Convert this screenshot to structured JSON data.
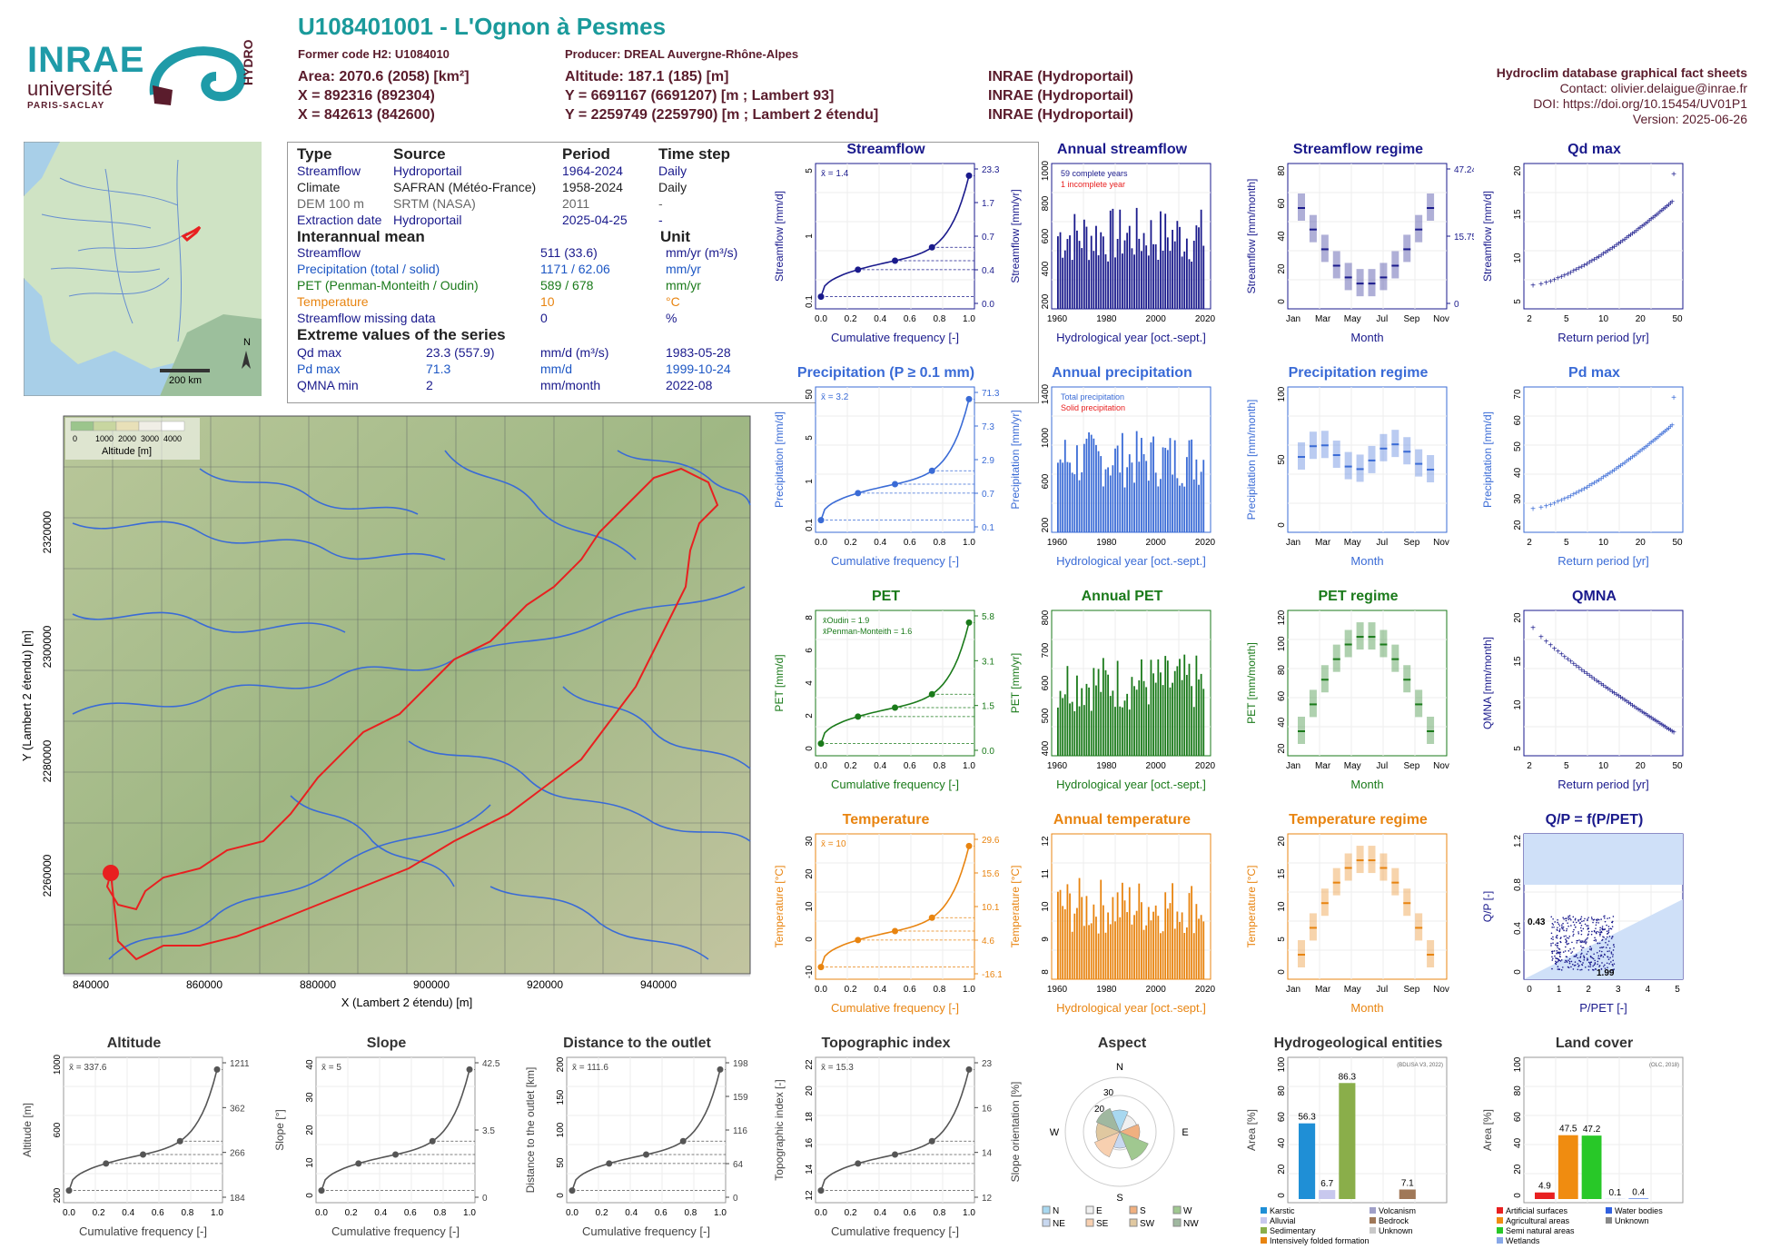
{
  "header": {
    "title": "U108401001 - L'Ognon à Pesmes",
    "former_code": "Former code H2: U1084010",
    "producer": "Producer: DREAL Auvergne-Rhône-Alpes",
    "area": "Area: 2070.6 (2058) [km²]",
    "altitude": "Altitude: 187.1 (185) [m]",
    "x93": "X = 892316 (892304)",
    "y93": "Y = 6691167 (6691207) [m ; Lambert 93]",
    "x2": "X = 842613 (842600)",
    "y2": "Y = 2259749 (2259790) [m ; Lambert 2 étendu]",
    "src1": "INRAE (Hydroportail)",
    "src2": "INRAE (Hydroportail)",
    "src3": "INRAE (Hydroportail)",
    "db": "Hydroclim database graphical fact sheets",
    "contact": "Contact: olivier.delaigue@inrae.fr",
    "doi": "DOI: https://doi.org/10.15454/UV01P1",
    "version": "Version: 2025-06-26"
  },
  "logos": {
    "inrae": "INRAE",
    "univ": "université",
    "ps": "PARIS-SACLAY",
    "hydro": "HYDRO"
  },
  "info": {
    "headers": [
      "Type",
      "Source",
      "Period",
      "Time step"
    ],
    "rows": [
      [
        "Streamflow",
        "Hydroportail",
        "1964-2024",
        "Daily"
      ],
      [
        "Climate",
        "SAFRAN (Météo-France)",
        "1958-2024",
        "Daily"
      ],
      [
        "DEM 100 m",
        "SRTM (NASA)",
        "2011",
        "-"
      ],
      [
        "Extraction date",
        "Hydroportail",
        "2025-04-25",
        "-"
      ]
    ],
    "interannual": "Interannual mean",
    "unit": "Unit",
    "means": [
      [
        "Streamflow",
        "511 (33.6)",
        "mm/yr (m³/s)"
      ],
      [
        "Precipitation (total / solid)",
        "1171 / 62.06",
        "mm/yr"
      ],
      [
        "PET (Penman-Monteith / Oudin)",
        "589 / 678",
        "mm/yr"
      ],
      [
        "Temperature",
        "10",
        "°C"
      ],
      [
        "Streamflow missing data",
        "0",
        "%"
      ]
    ],
    "extreme": "Extreme values of the series",
    "extremes": [
      [
        "Qd max",
        "23.3 (557.9)",
        "mm/d (m³/s)",
        "1983-05-28"
      ],
      [
        "Pd max",
        "71.3",
        "mm/d",
        "1999-10-24"
      ],
      [
        "QMNA min",
        "2",
        "mm/month",
        "2022-08"
      ]
    ]
  },
  "map": {
    "legend_title": "Altitude [m]",
    "legend_ticks": [
      "0",
      "1000",
      "2000",
      "3000",
      "4000"
    ],
    "scale": "200 km",
    "north": "N",
    "xlabel": "X (Lambert 2 étendu) [m]",
    "ylabel": "Y (Lambert 2 étendu) [m]",
    "xticks": [
      "840000",
      "860000",
      "880000",
      "900000",
      "920000",
      "940000"
    ],
    "yticks": [
      "2260000",
      "2280000",
      "2300000",
      "2320000"
    ]
  },
  "chart_data": [
    {
      "id": "streamflow",
      "type": "line",
      "title": "Streamflow",
      "ylabel": "Streamflow [mm/d]",
      "xlabel": "Cumulative frequency [-]",
      "mean_label": "x̄ = 1.4",
      "right_ticks": [
        "23.3",
        "1.7",
        "0.7",
        "0.4",
        "0.0"
      ],
      "y_ticks": [
        "0.1",
        "1",
        "5"
      ],
      "x_ticks": [
        "0.0",
        "0.2",
        "0.4",
        "0.6",
        "0.8",
        "1.0"
      ],
      "color": "#1a1a8c"
    },
    {
      "id": "annual_streamflow",
      "type": "bar",
      "title": "Annual streamflow",
      "ylabel": "Streamflow [mm/yr]",
      "xlabel": "Hydrological year [oct.-sept.]",
      "legend": [
        "59 complete years",
        "1 incomplete year"
      ],
      "x_ticks": [
        "1960",
        "1980",
        "2000",
        "2020"
      ],
      "y_ticks": [
        "200",
        "400",
        "600",
        "800",
        "1000"
      ],
      "color": "#1a1a8c"
    },
    {
      "id": "streamflow_regime",
      "type": "bar",
      "title": "Streamflow regime",
      "ylabel": "Streamflow [mm/month]",
      "xlabel": "Month",
      "x_ticks": [
        "Jan",
        "Mar",
        "May",
        "Jul",
        "Sep",
        "Nov"
      ],
      "y_ticks": [
        "0",
        "20",
        "40",
        "60",
        "80"
      ],
      "right_ticks": [
        "47.24",
        "15.75",
        "0"
      ],
      "color": "#1a1a8c"
    },
    {
      "id": "qd_max",
      "type": "scatter",
      "title": "Qd max",
      "ylabel": "Streamflow [mm/d]",
      "xlabel": "Return period [yr]",
      "x_ticks": [
        "2",
        "5",
        "10",
        "20",
        "50"
      ],
      "y_ticks": [
        "5",
        "10",
        "15",
        "20"
      ],
      "color": "#1a1a8c"
    },
    {
      "id": "precipitation",
      "type": "line",
      "title": "Precipitation (P ≥ 0.1 mm)",
      "ylabel": "Precipitation [mm/d]",
      "xlabel": "Cumulative frequency [-]",
      "mean_label": "x̄ = 3.2",
      "right_ticks": [
        "71.3",
        "7.3",
        "2.9",
        "0.7",
        "0.1"
      ],
      "y_ticks": [
        "0.1",
        "1",
        "5",
        "50"
      ],
      "x_ticks": [
        "0.0",
        "0.2",
        "0.4",
        "0.6",
        "0.8",
        "1.0"
      ],
      "color": "#3a6bd6"
    },
    {
      "id": "annual_precipitation",
      "type": "bar",
      "title": "Annual precipitation",
      "ylabel": "Precipitation [mm/yr]",
      "xlabel": "Hydrological year [oct.-sept.]",
      "legend": [
        "Total precipitation",
        "Solid precipitation"
      ],
      "x_ticks": [
        "1960",
        "1980",
        "2000",
        "2020"
      ],
      "y_ticks": [
        "200",
        "600",
        "1000",
        "1400"
      ],
      "color": "#3a6bd6"
    },
    {
      "id": "precipitation_regime",
      "type": "bar",
      "title": "Precipitation regime",
      "ylabel": "Precipitation [mm/month]",
      "xlabel": "Month",
      "x_ticks": [
        "Jan",
        "Mar",
        "May",
        "Jul",
        "Sep",
        "Nov"
      ],
      "y_ticks": [
        "0",
        "50",
        "100"
      ],
      "color": "#3a6bd6"
    },
    {
      "id": "pd_max",
      "type": "scatter",
      "title": "Pd max",
      "ylabel": "Precipitation [mm/d]",
      "xlabel": "Return period [yr]",
      "x_ticks": [
        "2",
        "5",
        "10",
        "20",
        "50"
      ],
      "y_ticks": [
        "20",
        "30",
        "40",
        "50",
        "60",
        "70"
      ],
      "color": "#3a6bd6"
    },
    {
      "id": "pet",
      "type": "line",
      "title": "PET",
      "ylabel": "PET [mm/d]",
      "xlabel": "Cumulative frequency [-]",
      "legend": [
        "x̄Oudin = 1.9",
        "x̄Penman-Monteith = 1.6"
      ],
      "right_ticks": [
        "5.8",
        "3.1",
        "1.5",
        "0.0"
      ],
      "y_ticks": [
        "0",
        "2",
        "4",
        "6",
        "8"
      ],
      "x_ticks": [
        "0.0",
        "0.2",
        "0.4",
        "0.6",
        "0.8",
        "1.0"
      ],
      "color": "#1a7a1a"
    },
    {
      "id": "annual_pet",
      "type": "bar",
      "title": "Annual PET",
      "ylabel": "PET [mm/yr]",
      "xlabel": "Hydrological year [oct.-sept.]",
      "x_ticks": [
        "1960",
        "1980",
        "2000",
        "2020"
      ],
      "y_ticks": [
        "400",
        "500",
        "600",
        "700",
        "800"
      ],
      "color": "#1a7a1a"
    },
    {
      "id": "pet_regime",
      "type": "bar",
      "title": "PET regime",
      "ylabel": "PET [mm/month]",
      "xlabel": "Month",
      "x_ticks": [
        "Jan",
        "Mar",
        "May",
        "Jul",
        "Sep",
        "Nov"
      ],
      "y_ticks": [
        "20",
        "40",
        "60",
        "80",
        "100",
        "120"
      ],
      "color": "#1a7a1a"
    },
    {
      "id": "qmna",
      "type": "scatter",
      "title": "QMNA",
      "ylabel": "QMNA [mm/month]",
      "xlabel": "Return period [yr]",
      "x_ticks": [
        "2",
        "5",
        "10",
        "20",
        "50"
      ],
      "y_ticks": [
        "5",
        "10",
        "15",
        "20"
      ],
      "color": "#1a1a8c"
    },
    {
      "id": "temperature",
      "type": "line",
      "title": "Temperature",
      "ylabel": "Temperature [°C]",
      "xlabel": "Cumulative frequency [-]",
      "mean_label": "x̄ = 10",
      "right_ticks": [
        "29.6",
        "15.6",
        "10.1",
        "4.6",
        "-16.1"
      ],
      "y_ticks": [
        "-10",
        "0",
        "10",
        "20",
        "30"
      ],
      "x_ticks": [
        "0.0",
        "0.2",
        "0.4",
        "0.6",
        "0.8",
        "1.0"
      ],
      "color": "#e88410"
    },
    {
      "id": "annual_temperature",
      "type": "bar",
      "title": "Annual temperature",
      "ylabel": "Temperature [°C]",
      "xlabel": "Hydrological year [oct.-sept.]",
      "x_ticks": [
        "1960",
        "1980",
        "2000",
        "2020"
      ],
      "y_ticks": [
        "8",
        "9",
        "10",
        "11",
        "12"
      ],
      "color": "#e88410"
    },
    {
      "id": "temperature_regime",
      "type": "bar",
      "title": "Temperature regime",
      "ylabel": "Temperature [°C]",
      "xlabel": "Month",
      "x_ticks": [
        "Jan",
        "Mar",
        "May",
        "Jul",
        "Sep",
        "Nov"
      ],
      "y_ticks": [
        "0",
        "5",
        "10",
        "15",
        "20"
      ],
      "color": "#e88410"
    },
    {
      "id": "qp_pet",
      "type": "scatter",
      "title": "Q/P = f(P/PET)",
      "ylabel": "Q/P [-]",
      "xlabel": "P/PET [-]",
      "labels": [
        "0.43",
        "1.99"
      ],
      "x_ticks": [
        "0",
        "1",
        "2",
        "3",
        "4",
        "5"
      ],
      "y_ticks": [
        "0",
        "0.4",
        "0.8",
        "1.2"
      ],
      "color": "#1a1a8c"
    },
    {
      "id": "altitude",
      "type": "line",
      "title": "Altitude",
      "ylabel": "Altitude [m]",
      "xlabel": "Cumulative frequency [-]",
      "mean_label": "x̄ = 337.6",
      "right_ticks": [
        "1211",
        "362",
        "266",
        "184"
      ],
      "y_ticks": [
        "200",
        "600",
        "1000"
      ],
      "x_ticks": [
        "0.0",
        "0.2",
        "0.4",
        "0.6",
        "0.8",
        "1.0"
      ],
      "color": "#555"
    },
    {
      "id": "slope",
      "type": "line",
      "title": "Slope",
      "ylabel": "Slope [°]",
      "xlabel": "Cumulative frequency [-]",
      "mean_label": "x̄ = 5",
      "right_ticks": [
        "42.5",
        "3.5",
        "0"
      ],
      "y_ticks": [
        "0",
        "10",
        "20",
        "30",
        "40"
      ],
      "x_ticks": [
        "0.0",
        "0.2",
        "0.4",
        "0.6",
        "0.8",
        "1.0"
      ],
      "color": "#555"
    },
    {
      "id": "distance",
      "type": "line",
      "title": "Distance to the outlet",
      "ylabel": "Distance to the outlet [km]",
      "xlabel": "Cumulative frequency [-]",
      "mean_label": "x̄ = 111.6",
      "right_ticks": [
        "198",
        "159",
        "116",
        "64",
        "0"
      ],
      "y_ticks": [
        "0",
        "50",
        "100",
        "150",
        "200"
      ],
      "x_ticks": [
        "0.0",
        "0.2",
        "0.4",
        "0.6",
        "0.8",
        "1.0"
      ],
      "color": "#555"
    },
    {
      "id": "topo",
      "type": "line",
      "title": "Topographic index",
      "ylabel": "Topographic index [-]",
      "xlabel": "Cumulative frequency [-]",
      "mean_label": "x̄ = 15.3",
      "right_ticks": [
        "23",
        "16",
        "14",
        "12"
      ],
      "y_ticks": [
        "12",
        "14",
        "16",
        "18",
        "20",
        "22"
      ],
      "x_ticks": [
        "0.0",
        "0.2",
        "0.4",
        "0.6",
        "0.8",
        "1.0"
      ],
      "color": "#555"
    },
    {
      "id": "aspect",
      "type": "pie",
      "title": "Aspect",
      "ylabel": "Slope orientation [%]",
      "directions": [
        "N",
        "E",
        "S",
        "W"
      ],
      "rings": [
        "20",
        "30"
      ],
      "legend": [
        "N",
        "E",
        "S",
        "W",
        "NE",
        "SE",
        "SW",
        "NW"
      ]
    },
    {
      "id": "hydrogeo",
      "type": "bar",
      "title": "Hydrogeological entities",
      "ylabel": "Area [%]",
      "note": "(BDLISA V3, 2022)",
      "y_ticks": [
        "0",
        "20",
        "40",
        "60",
        "80",
        "100"
      ],
      "categories": [
        "Karstic",
        "Alluvial",
        "Sedimentary",
        "Intensively folded formation",
        "Volcanism",
        "Bedrock",
        "Unknown"
      ],
      "values": [
        56.3,
        6.7,
        86.3,
        0,
        0,
        7.1,
        0
      ],
      "labels": [
        "56.3",
        "6.7",
        "86.3",
        "7.1"
      ],
      "colors": [
        "#1f8fd6",
        "#c8c8ee",
        "#8aae4a",
        "#e88410",
        "#a0a0c8",
        "#a07858",
        "#c8c8c8"
      ]
    },
    {
      "id": "landcover",
      "type": "bar",
      "title": "Land cover",
      "ylabel": "Area [%]",
      "note": "(OLC, 2018)",
      "y_ticks": [
        "0",
        "20",
        "40",
        "60",
        "80",
        "100"
      ],
      "categories": [
        "Artificial surfaces",
        "Agricultural areas",
        "Semi natural areas",
        "Wetlands",
        "Water bodies",
        "Unknown"
      ],
      "values": [
        4.9,
        47.5,
        47.2,
        0.1,
        0.4,
        0
      ],
      "labels": [
        "4.9",
        "47.5",
        "47.2",
        "0.1",
        "0.4"
      ],
      "colors": [
        "#e82020",
        "#f08c10",
        "#28c828",
        "#88a8e8",
        "#3060e0",
        "#888888"
      ]
    }
  ]
}
